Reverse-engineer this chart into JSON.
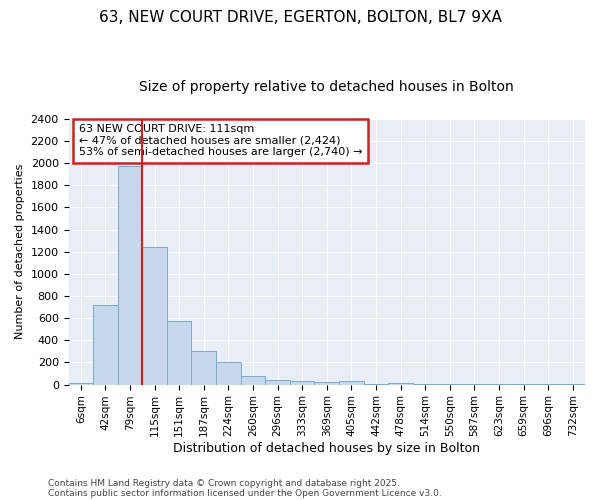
{
  "title1": "63, NEW COURT DRIVE, EGERTON, BOLTON, BL7 9XA",
  "title2": "Size of property relative to detached houses in Bolton",
  "xlabel": "Distribution of detached houses by size in Bolton",
  "ylabel": "Number of detached properties",
  "categories": [
    "6sqm",
    "42sqm",
    "79sqm",
    "115sqm",
    "151sqm",
    "187sqm",
    "224sqm",
    "260sqm",
    "296sqm",
    "333sqm",
    "369sqm",
    "405sqm",
    "442sqm",
    "478sqm",
    "514sqm",
    "550sqm",
    "587sqm",
    "623sqm",
    "659sqm",
    "696sqm",
    "732sqm"
  ],
  "values": [
    10,
    720,
    1970,
    1240,
    575,
    300,
    200,
    80,
    45,
    32,
    20,
    30,
    5,
    10,
    5,
    3,
    3,
    2,
    2,
    2,
    2
  ],
  "bar_color": "#c8d8ec",
  "bar_edge_color": "#7aaac8",
  "vline_color": "#cc2222",
  "annotation_text": "63 NEW COURT DRIVE: 111sqm\n← 47% of detached houses are smaller (2,424)\n53% of semi-detached houses are larger (2,740) →",
  "annotation_box_color": "white",
  "annotation_box_edge": "#cc2222",
  "ylim": [
    0,
    2400
  ],
  "yticks": [
    0,
    200,
    400,
    600,
    800,
    1000,
    1200,
    1400,
    1600,
    1800,
    2000,
    2200,
    2400
  ],
  "footer1": "Contains HM Land Registry data © Crown copyright and database right 2025.",
  "footer2": "Contains public sector information licensed under the Open Government Licence v3.0.",
  "bg_color": "#ffffff",
  "plot_bg_color": "#e8eef6",
  "grid_color": "#ffffff",
  "title1_fontsize": 11,
  "title2_fontsize": 10
}
